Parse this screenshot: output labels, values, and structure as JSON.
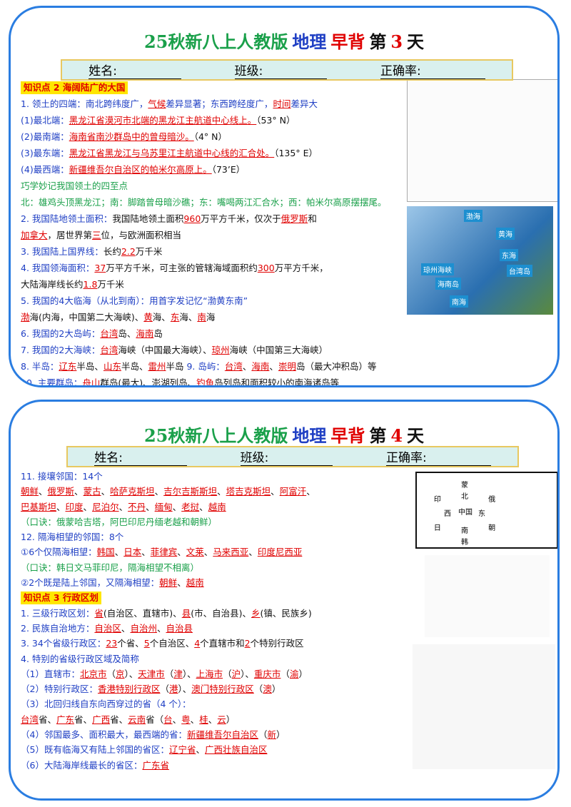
{
  "cards": [
    {
      "title": [
        {
          "text": "25秋新八上人教版",
          "color": "#1aa04a"
        },
        {
          "text": "地理",
          "color": "#1f3fc4"
        },
        {
          "text": "早背",
          "color": "#e00000"
        },
        {
          "text": "第",
          "color": "#111111"
        },
        {
          "text": "3",
          "color": "#e00000"
        },
        {
          "text": "天",
          "color": "#111111"
        }
      ],
      "form": [
        "姓名:",
        "班级:",
        "正确率:"
      ],
      "map_labels": [
        "渤海",
        "黄海",
        "东海",
        "台湾岛",
        "琼州海峡",
        "海南岛",
        "南海"
      ],
      "lines": [
        {
          "header": "知识点 2 海阔陆广的大国"
        },
        {
          "color": "#1f3fc4",
          "segs": [
            "1. 领土的四端：南北跨纬度广，",
            {
              "red": "气候"
            },
            "差异显著；东西跨经度广，",
            {
              "red": "时间"
            },
            "差异大"
          ]
        },
        {
          "color": "#1f3fc4",
          "segs": [
            "(1)最北端：",
            {
              "red": "黑龙江省漠河市北端的黑龙江主航道中心线上。"
            },
            {
              "black": "（53° N）"
            }
          ]
        },
        {
          "color": "#1f3fc4",
          "segs": [
            "(2)最南端：",
            {
              "red": "海南省南沙群岛中的曾母暗沙。"
            },
            {
              "black": "（4° N）"
            }
          ]
        },
        {
          "color": "#1f3fc4",
          "segs": [
            "(3)最东端：",
            {
              "red": "黑龙江省黑龙江与乌苏里江主航道中心线的汇合处。"
            },
            {
              "black": "（135° E）"
            }
          ]
        },
        {
          "color": "#1f3fc4",
          "segs": [
            "(4)最西端：",
            {
              "red": "新疆维吾尔自治区的帕米尔高原上。"
            },
            {
              "black": "（73’E）"
            }
          ]
        },
        {
          "color": "#1aa04a",
          "segs": [
            "巧学妙记我国领土的四至点"
          ]
        },
        {
          "color": "#1aa04a",
          "segs": [
            "北：雄鸡头顶黑龙江；南：脚踏曾母暗沙礁；东：嘴喝两江汇合水；西：帕米尔高原摆摆尾。"
          ]
        },
        {
          "color": "#1f3fc4",
          "segs": [
            "2. 我国陆地领土面积：",
            {
              "black": "我国陆地领土面积"
            },
            {
              "red": "960"
            },
            {
              "black": "万平方千米，仅次于"
            },
            {
              "red": "俄罗斯"
            },
            {
              "black": "和"
            }
          ]
        },
        {
          "color": "#111111",
          "segs": [
            {
              "red": "加拿大"
            },
            "，居世界第",
            {
              "red": "三"
            },
            "位，与欧洲面积相当"
          ]
        },
        {
          "color": "#1f3fc4",
          "segs": [
            "3. 我国陆上国界线：",
            {
              "black": "长约"
            },
            {
              "red": "2.2"
            },
            {
              "black": "万千米"
            }
          ]
        },
        {
          "color": "#1f3fc4",
          "segs": [
            "4. 我国领海面积：",
            {
              "red": "37"
            },
            {
              "black": "万平方千米，可主张的管辖海域面积约"
            },
            {
              "red": "300"
            },
            {
              "black": "万平方千米，"
            }
          ]
        },
        {
          "color": "#111111",
          "segs": [
            "大陆海岸线长约",
            {
              "red": "1.8"
            },
            "万千米"
          ]
        },
        {
          "color": "#1f3fc4",
          "segs": [
            "5. 我国的4大临海（从北到南）：用首字发记忆“渤黄东南”"
          ]
        },
        {
          "color": "#111111",
          "segs": [
            {
              "red": "渤"
            },
            "海(内海，中国第二大海峡)、",
            {
              "red": "黄"
            },
            "海、",
            {
              "red": "东"
            },
            "海、",
            {
              "red": "南"
            },
            "海"
          ]
        },
        {
          "color": "#1f3fc4",
          "segs": [
            "6. 我国的2大岛屿：",
            {
              "red": "台湾"
            },
            {
              "black": "岛、"
            },
            {
              "red": "海南"
            },
            {
              "black": "岛"
            }
          ]
        },
        {
          "color": "#1f3fc4",
          "segs": [
            "7. 我国的2大海峡：",
            {
              "red": "台湾"
            },
            {
              "black": "海峡（中国最大海峡）、"
            },
            {
              "red": "琼州"
            },
            {
              "black": "海峡（中国第三大海峡）"
            }
          ]
        },
        {
          "color": "#1f3fc4",
          "segs": [
            "8. 半岛：",
            {
              "red": "辽东"
            },
            {
              "black": "半岛、"
            },
            {
              "red": "山东"
            },
            {
              "black": "半岛、"
            },
            {
              "red": "雷州"
            },
            {
              "black": "半岛  "
            },
            "9. 岛屿：",
            {
              "red": "台湾"
            },
            {
              "black": "、"
            },
            {
              "red": "海南"
            },
            {
              "black": "、"
            },
            {
              "red": "崇明"
            },
            {
              "black": "岛（最大冲积岛）等"
            }
          ]
        },
        {
          "color": "#1f3fc4",
          "segs": [
            "  10. 主要群岛：",
            {
              "red": "舟山"
            },
            {
              "black": "群岛(最大)、澎湖列岛、"
            },
            {
              "red": "钓鱼"
            },
            {
              "black": "岛列岛和面积较小的南海诸岛等"
            }
          ]
        }
      ]
    },
    {
      "title": [
        {
          "text": "25秋新八上人教版",
          "color": "#1aa04a"
        },
        {
          "text": "地理",
          "color": "#1f3fc4"
        },
        {
          "text": "早背",
          "color": "#e00000"
        },
        {
          "text": "第",
          "color": "#111111"
        },
        {
          "text": "4",
          "color": "#e00000"
        },
        {
          "text": "天",
          "color": "#111111"
        }
      ],
      "form": [
        "姓名:",
        "班级:",
        "正确率:"
      ],
      "diagram_labels": [
        "中国",
        "北",
        "东",
        "南",
        "西",
        "蒙",
        "俄",
        "朝",
        "韩",
        "日",
        "印"
      ],
      "lines": [
        {
          "color": "#1f3fc4",
          "segs": [
            "11. 接壤邻国：14个"
          ]
        },
        {
          "color": "#111111",
          "segs": [
            {
              "red": "朝鲜"
            },
            "、",
            {
              "red": "俄罗斯"
            },
            "、",
            {
              "red": "蒙古"
            },
            "、",
            {
              "red": "哈萨克斯坦"
            },
            "、",
            {
              "red": "吉尔吉斯斯坦"
            },
            "、",
            {
              "red": "塔吉克斯坦"
            },
            "、",
            {
              "red": "阿富汗"
            },
            "、"
          ]
        },
        {
          "color": "#111111",
          "segs": [
            {
              "red": "巴基斯坦"
            },
            "、",
            {
              "red": "印度"
            },
            "、",
            {
              "red": "尼泊尔"
            },
            "、",
            {
              "red": "不丹"
            },
            "、",
            {
              "red": "缅甸"
            },
            "、",
            {
              "red": "老挝"
            },
            "、",
            {
              "red": "越南"
            }
          ]
        },
        {
          "color": "#1aa04a",
          "segs": [
            "（口诀：俄蒙哈吉塔，阿巴印尼丹缅老越和朝鲜）"
          ]
        },
        {
          "color": "#1f3fc4",
          "segs": [
            "12. 隔海相望的邻国：8个"
          ]
        },
        {
          "color": "#1f3fc4",
          "segs": [
            "①6个仅隔海相望：",
            {
              "red": "韩国"
            },
            {
              "black": "、"
            },
            {
              "red": "日本"
            },
            {
              "black": "、"
            },
            {
              "red": "菲律宾"
            },
            {
              "black": "、"
            },
            {
              "red": "文莱"
            },
            {
              "black": "、"
            },
            {
              "red": "马来西亚"
            },
            {
              "black": "、"
            },
            {
              "red": "印度尼西亚"
            }
          ]
        },
        {
          "color": "#1aa04a",
          "segs": [
            "（口诀：韩日文马菲印尼，隔海相望不相离）"
          ]
        },
        {
          "color": "#1f3fc4",
          "segs": [
            "②2个既是陆上邻国，又隔海相望：",
            {
              "red": "朝鲜"
            },
            {
              "black": "、"
            },
            {
              "red": "越南"
            }
          ]
        },
        {
          "header": "知识点 3 行政区划"
        },
        {
          "color": "#1f3fc4",
          "segs": [
            "1. 三级行政区划：",
            {
              "red": "省"
            },
            {
              "black": "(自治区、直辖市)、"
            },
            {
              "red": "县"
            },
            {
              "black": "(市、自治县)、"
            },
            {
              "red": "乡"
            },
            {
              "black": "(镇、民族乡)"
            }
          ]
        },
        {
          "color": "#1f3fc4",
          "segs": [
            "2. 民族自治地方：",
            {
              "red": "自治区"
            },
            {
              "black": "、"
            },
            {
              "red": "自治州"
            },
            {
              "black": "、"
            },
            {
              "red": "自治县"
            }
          ]
        },
        {
          "color": "#1f3fc4",
          "segs": [
            "3. 34个省级行政区：",
            {
              "red": "23"
            },
            {
              "black": "个省、"
            },
            {
              "red": "5"
            },
            {
              "black": "个自治区、"
            },
            {
              "red": "4"
            },
            {
              "black": "个直辖市和"
            },
            {
              "red": "2"
            },
            {
              "black": "个特别行政区"
            }
          ]
        },
        {
          "color": "#1f3fc4",
          "segs": [
            "4. 特别的省级行政区域及简称"
          ]
        },
        {
          "color": "#1f3fc4",
          "segs": [
            "（1）直辖市：",
            {
              "red": "北京市"
            },
            {
              "black": "（"
            },
            {
              "red": "京"
            },
            {
              "black": "）、"
            },
            {
              "red": "天津市"
            },
            {
              "black": "（"
            },
            {
              "red": "津"
            },
            {
              "black": "）、"
            },
            {
              "red": "上海市"
            },
            {
              "black": "（"
            },
            {
              "red": "沪"
            },
            {
              "black": "）、"
            },
            {
              "red": "重庆市"
            },
            {
              "black": "（"
            },
            {
              "red": "渝"
            },
            {
              "black": "）"
            }
          ]
        },
        {
          "color": "#1f3fc4",
          "segs": [
            "（2）特别行政区：",
            {
              "red": "香港特别行政区"
            },
            {
              "black": "（"
            },
            {
              "red": "港"
            },
            {
              "black": "）、"
            },
            {
              "red": "澳门特别行政区"
            },
            {
              "black": "（"
            },
            {
              "red": "澳"
            },
            {
              "black": "）"
            }
          ]
        },
        {
          "color": "#1f3fc4",
          "segs": [
            "（3）北回归线自东向西穿过的省（4 个）："
          ]
        },
        {
          "color": "#111111",
          "segs": [
            "    ",
            {
              "red": "台湾"
            },
            "省、",
            {
              "red": "广东"
            },
            "省、",
            {
              "red": "广西"
            },
            "省、",
            {
              "red": "云南"
            },
            "省（",
            {
              "red": "台"
            },
            "、",
            {
              "red": "粤"
            },
            "、",
            {
              "red": "桂"
            },
            "、",
            {
              "red": "云"
            },
            "）"
          ]
        },
        {
          "color": "#1f3fc4",
          "segs": [
            "（4）邻国最多、面积最大，最西端的省：",
            {
              "red": "新疆维吾尔自治区"
            },
            {
              "black": "（"
            },
            {
              "red": "新"
            },
            {
              "black": "）"
            }
          ]
        },
        {
          "color": "#1f3fc4",
          "segs": [
            "（5）既有临海又有陆上邻国的省区：",
            {
              "red": "辽宁省"
            },
            {
              "black": "、"
            },
            {
              "red": "广西壮族自治区"
            }
          ]
        },
        {
          "color": "#1f3fc4",
          "segs": [
            "（6）大陆海岸线最长的省区：",
            {
              "red": "广东省"
            }
          ]
        }
      ]
    }
  ]
}
